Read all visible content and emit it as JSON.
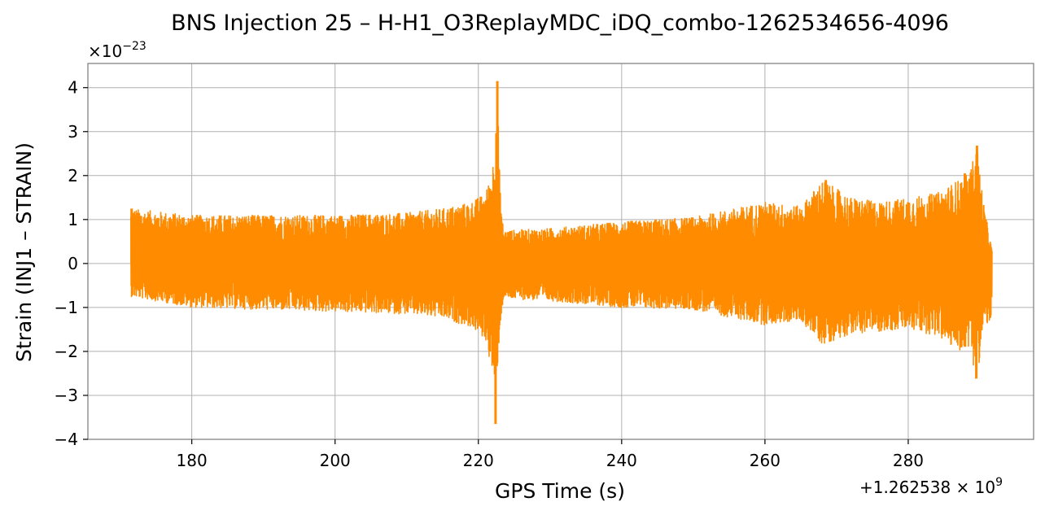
{
  "chart_data": {
    "type": "line",
    "title": "BNS Injection 25 – H-H1_O3ReplayMDC_iDQ_combo-1262534656-4096",
    "xlabel": "GPS Time (s)",
    "ylabel": "Strain (INJ1 – STRAIN)",
    "x_offset_label": "+1.262538 × 10^9",
    "y_scale_label": "×10^−23",
    "xlim": [
      165.5,
      297.5
    ],
    "ylim": [
      -4.0,
      4.55
    ],
    "x_ticks": [
      180,
      200,
      220,
      240,
      260,
      280
    ],
    "x_tick_labels": [
      "180",
      "200",
      "220",
      "240",
      "260",
      "280"
    ],
    "y_ticks": [
      -4,
      -3,
      -2,
      -1,
      0,
      1,
      2,
      3,
      4
    ],
    "y_tick_labels": [
      "−4",
      "−3",
      "−2",
      "−1",
      "0",
      "1",
      "2",
      "3",
      "4"
    ],
    "grid": true,
    "color": "#ff8c00",
    "series": [
      {
        "x_range": [
          171.5,
          291.7
        ],
        "envelope": {
          "x": [
            171.5,
            180,
            190,
            200,
            210,
            215,
            219,
            221,
            222,
            222.4,
            222.7,
            223.0,
            223.5,
            230,
            240,
            250,
            260,
            265,
            268,
            272,
            276,
            280,
            284,
            287,
            288.5,
            289.6,
            290.5,
            291.7
          ],
          "upper": [
            1.25,
            1.1,
            1.1,
            1.1,
            1.15,
            1.25,
            1.4,
            1.6,
            2.2,
            3.5,
            4.15,
            1.8,
            0.75,
            0.8,
            0.95,
            1.05,
            1.4,
            1.3,
            1.9,
            1.5,
            1.4,
            1.5,
            1.6,
            1.9,
            2.05,
            2.7,
            1.4,
            0.3
          ],
          "lower": [
            -0.75,
            -1.0,
            -1.05,
            -1.1,
            -1.15,
            -1.25,
            -1.45,
            -1.75,
            -2.5,
            -3.65,
            -2.3,
            -1.5,
            -0.8,
            -0.85,
            -1.0,
            -1.05,
            -1.4,
            -1.3,
            -1.85,
            -1.6,
            -1.55,
            -1.5,
            -1.65,
            -2.0,
            -1.9,
            -2.65,
            -1.45,
            -1.3
          ]
        },
        "spikes": [
          {
            "x": 222.65,
            "y": 4.15
          },
          {
            "x": 222.4,
            "y": -3.65
          },
          {
            "x": 289.6,
            "y": 2.68
          },
          {
            "x": 289.5,
            "y": -2.62
          },
          {
            "x": 171.6,
            "y": 1.25
          },
          {
            "x": 219.7,
            "y": 1.45
          },
          {
            "x": 268.5,
            "y": 1.9
          },
          {
            "x": 287.9,
            "y": 2.05
          }
        ]
      }
    ]
  }
}
